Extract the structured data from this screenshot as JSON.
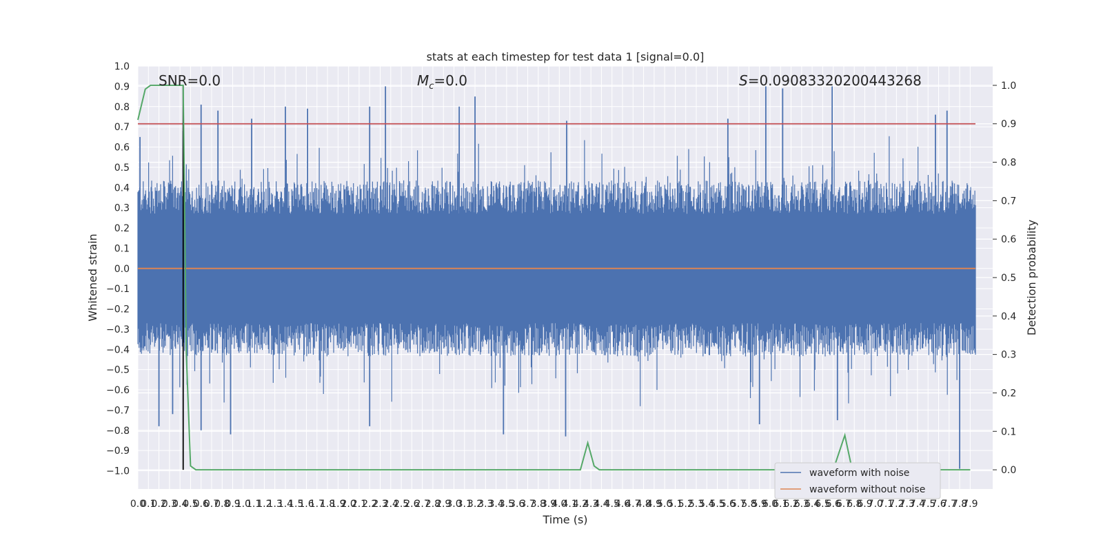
{
  "chart_data": {
    "type": "line",
    "title": "stats at each timestep for test data 1 [signal=0.0]",
    "xlabel": "Time (s)",
    "ylabel": "Whitened strain",
    "y2label": "Detection probability",
    "xlim": [
      0.0,
      7.95
    ],
    "ylim": [
      -1.09,
      1.0
    ],
    "y2lim": [
      -0.05,
      1.05
    ],
    "yticks": [
      "−1.0",
      "−0.9",
      "−0.8",
      "−0.7",
      "−0.6",
      "−0.5",
      "−0.4",
      "−0.3",
      "−0.2",
      "−0.1",
      "0.0",
      "0.1",
      "0.2",
      "0.3",
      "0.4",
      "0.5",
      "0.6",
      "0.7",
      "0.8",
      "0.9",
      "1.0"
    ],
    "y2ticks": [
      "0.0",
      "0.1",
      "0.2",
      "0.3",
      "0.4",
      "0.5",
      "0.6",
      "0.7",
      "0.8",
      "0.9",
      "1.0"
    ],
    "xtick_step": 0.1,
    "xticks_count": 80,
    "grid": true,
    "legend_position": "lower-right",
    "annotations": {
      "snr": "SNR=0.0",
      "mc_symbol": "M",
      "mc_sub": "c",
      "mc_value": "=0.0",
      "s_symbol": "S",
      "s_value": "=0.09083320200443268"
    },
    "series": [
      {
        "name": "waveform with noise",
        "color": "#4c72b0",
        "typical_amplitude": 0.3,
        "peak_times": [
          0.02,
          0.43,
          0.6,
          0.76,
          1.08,
          1.4,
          1.61,
          2.2,
          2.35,
          3.05,
          3.2,
          4.07,
          5.6,
          5.96,
          6.12,
          6.59,
          7.57,
          7.68
        ],
        "peak_values": [
          0.65,
          0.68,
          0.81,
          0.78,
          0.74,
          0.8,
          0.79,
          0.8,
          0.9,
          0.8,
          0.85,
          0.73,
          0.74,
          0.9,
          0.89,
          0.9,
          0.76,
          0.78
        ],
        "trough_times": [
          0.2,
          0.33,
          0.6,
          0.88,
          2.2,
          3.47,
          4.06,
          5.9,
          6.64,
          7.8
        ],
        "trough_values": [
          -0.78,
          -0.72,
          -0.8,
          -0.82,
          -0.78,
          -0.82,
          -0.83,
          -0.77,
          -0.75,
          -0.99
        ]
      },
      {
        "name": "waveform without noise",
        "color": "#dd8452",
        "value": 0.0
      },
      {
        "name": "detection probability",
        "color": "#55a868",
        "axis": "right",
        "x": [
          0.0,
          0.07,
          0.12,
          0.2,
          0.3,
          0.4,
          0.43,
          0.46,
          0.5,
          0.55,
          0.6,
          1.0,
          2.0,
          3.0,
          4.0,
          4.2,
          4.27,
          4.33,
          4.38,
          4.5,
          5.0,
          6.0,
          6.6,
          6.71,
          6.78,
          6.85,
          7.0,
          7.5,
          7.9
        ],
        "y": [
          0.91,
          0.99,
          1.0,
          1.0,
          1.0,
          1.0,
          1.0,
          0.3,
          0.01,
          0.0,
          0.0,
          0.0,
          0.0,
          0.0,
          0.0,
          0.0,
          0.07,
          0.01,
          0.0,
          0.0,
          0.0,
          0.0,
          0.0,
          0.09,
          0.0,
          0.0,
          0.0,
          0.0,
          0.0
        ]
      }
    ],
    "threshold": {
      "axis": "right",
      "value": 0.9,
      "color": "#c44e52"
    },
    "vline": {
      "x": 0.43,
      "color": "#000000"
    }
  }
}
